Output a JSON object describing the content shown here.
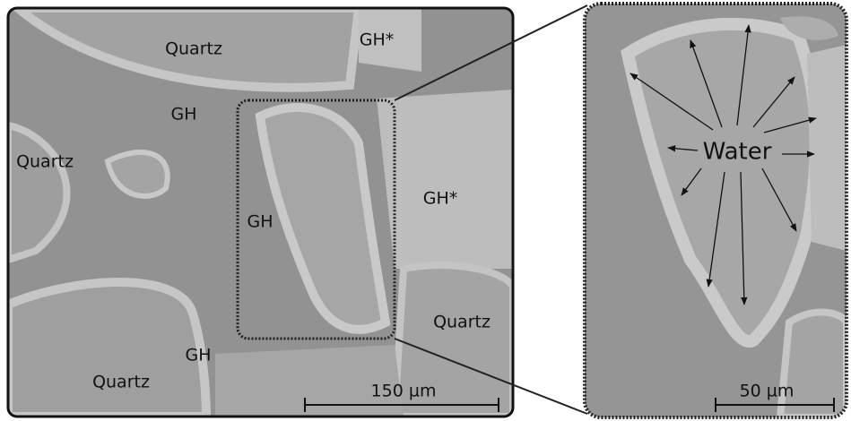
{
  "left_panel": {
    "labels": [
      "Quartz",
      "GH*",
      "GH",
      "Quartz",
      "GH*",
      "GH",
      "Quartz",
      "GH",
      "Quartz"
    ],
    "scale_bar": "150 µm"
  },
  "right_panel": {
    "label": "Water",
    "scale_bar": "50 µm"
  }
}
